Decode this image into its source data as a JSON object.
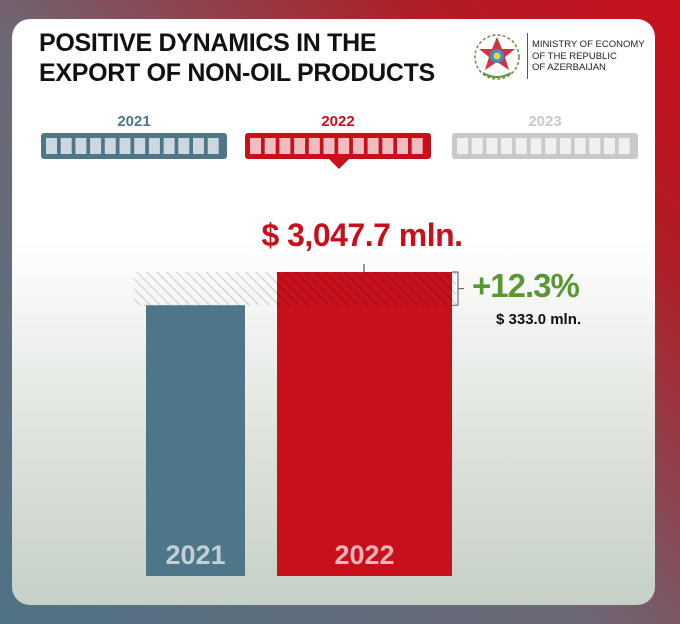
{
  "header": {
    "title_line1": "POSITIVE DYNAMICS IN THE",
    "title_line2": "EXPORT OF NON-OIL PRODUCTS"
  },
  "logo": {
    "icon": "azerbaijan-emblem-icon",
    "line1": "MINISTRY OF ECONOMY",
    "line2": "OF THE REPUBLIC",
    "line3": "OF AZERBAIJAN"
  },
  "timeline": [
    {
      "label": "2021",
      "color": "#4e7588",
      "state": "past"
    },
    {
      "label": "2022",
      "color": "#c8101d",
      "state": "active"
    },
    {
      "label": "2023",
      "color": "#c9c9c9",
      "state": "future"
    }
  ],
  "chart_data": {
    "type": "bar",
    "categories": [
      "2021",
      "2022"
    ],
    "values": [
      2714.7,
      3047.7
    ],
    "colors": [
      "#4e7588",
      "#c8101d"
    ],
    "value_label": "$ 3,047.7 mln.",
    "growth_percent_label": "+12.3%",
    "growth_absolute_label": "$ 333.0 mln.",
    "growth_absolute": 333.0,
    "growth_percent": 12.3
  }
}
